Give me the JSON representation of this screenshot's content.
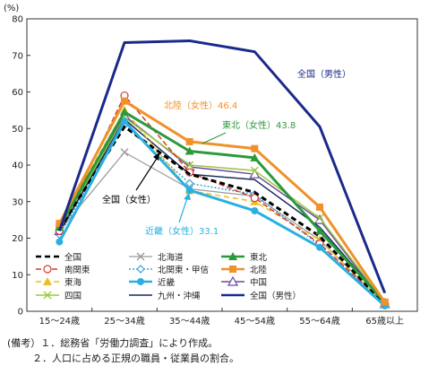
{
  "chart_data": {
    "type": "line",
    "unit_label": "(%)",
    "categories": [
      "15～24歳",
      "25～34歳",
      "35～44歳",
      "45～54歳",
      "55～64歳",
      "65歳以上"
    ],
    "ylim": [
      0,
      80
    ],
    "yticks": [
      0,
      10,
      20,
      30,
      40,
      50,
      60,
      70,
      80
    ],
    "grid": false,
    "legend_position": "bottom-inside",
    "series": [
      {
        "name": "全国",
        "color": "#000000",
        "dash": "6,4",
        "marker": "none",
        "width": 3,
        "values": [
          22.5,
          50.5,
          37.5,
          32.5,
          20.5,
          2.0
        ]
      },
      {
        "name": "北海道",
        "color": "#9a9a9a",
        "dash": "",
        "marker": "x",
        "width": 1.2,
        "values": [
          22.0,
          43.5,
          33.5,
          31.5,
          19.5,
          2.0
        ]
      },
      {
        "name": "東北",
        "color": "#2a9a3a",
        "dash": "",
        "marker": "triangle",
        "width": 3,
        "values": [
          23.0,
          54.5,
          43.8,
          42.0,
          22.0,
          2.5
        ]
      },
      {
        "name": "南関東",
        "color": "#d63a2f",
        "dash": "6,3",
        "marker": "circle-open",
        "width": 1.5,
        "values": [
          22.0,
          59.0,
          38.0,
          31.0,
          18.5,
          2.0
        ]
      },
      {
        "name": "北関東・甲信",
        "color": "#3aa0d8",
        "dash": "2,2",
        "marker": "diamond-open",
        "width": 1.5,
        "values": [
          21.0,
          51.0,
          35.0,
          32.0,
          18.0,
          2.0
        ]
      },
      {
        "name": "北陸",
        "color": "#f0912a",
        "dash": "",
        "marker": "square",
        "width": 3,
        "values": [
          24.0,
          57.5,
          46.4,
          44.5,
          28.5,
          2.5
        ]
      },
      {
        "name": "東海",
        "color": "#e8c020",
        "dash": "6,4",
        "marker": "triangle",
        "width": 1.5,
        "values": [
          24.0,
          55.0,
          33.0,
          30.0,
          19.5,
          2.0
        ]
      },
      {
        "name": "近畿",
        "color": "#2ab0e0",
        "dash": "",
        "marker": "circle",
        "width": 3,
        "values": [
          19.0,
          52.0,
          33.1,
          27.5,
          17.5,
          1.5
        ]
      },
      {
        "name": "中国",
        "color": "#6a4aa0",
        "dash": "",
        "marker": "triangle-open",
        "width": 1.5,
        "values": [
          22.0,
          53.5,
          39.5,
          37.5,
          25.0,
          2.0
        ]
      },
      {
        "name": "四国",
        "color": "#9ac840",
        "dash": "",
        "marker": "x",
        "width": 1.5,
        "values": [
          22.5,
          53.0,
          40.0,
          38.5,
          25.5,
          2.5
        ]
      },
      {
        "name": "九州・沖縄",
        "color": "#1a2a5a",
        "dash": "",
        "marker": "none",
        "width": 1.5,
        "values": [
          21.5,
          52.5,
          37.5,
          36.0,
          23.0,
          2.5
        ]
      },
      {
        "name": "全国（男性）",
        "color": "#1a2a8a",
        "dash": "",
        "marker": "none",
        "width": 3,
        "values": [
          22.0,
          73.5,
          74.0,
          71.0,
          50.5,
          5.0
        ]
      }
    ],
    "annotations": [
      {
        "text": "全国（男性）",
        "color": "#1a2a8a"
      },
      {
        "text": "北陸（女性）46.4",
        "color": "#f0912a"
      },
      {
        "text": "東北（女性）43.8",
        "color": "#2a9a3a"
      },
      {
        "text": "全国（女性）",
        "color": "#000000"
      },
      {
        "text": "近畿（女性）33.1",
        "color": "#2ab0e0"
      }
    ]
  },
  "notes": {
    "line1": "(備考）１．総務省「労働力調査」により作成。",
    "line2": "２．人口に占める正規の職員・従業員の割合。"
  }
}
